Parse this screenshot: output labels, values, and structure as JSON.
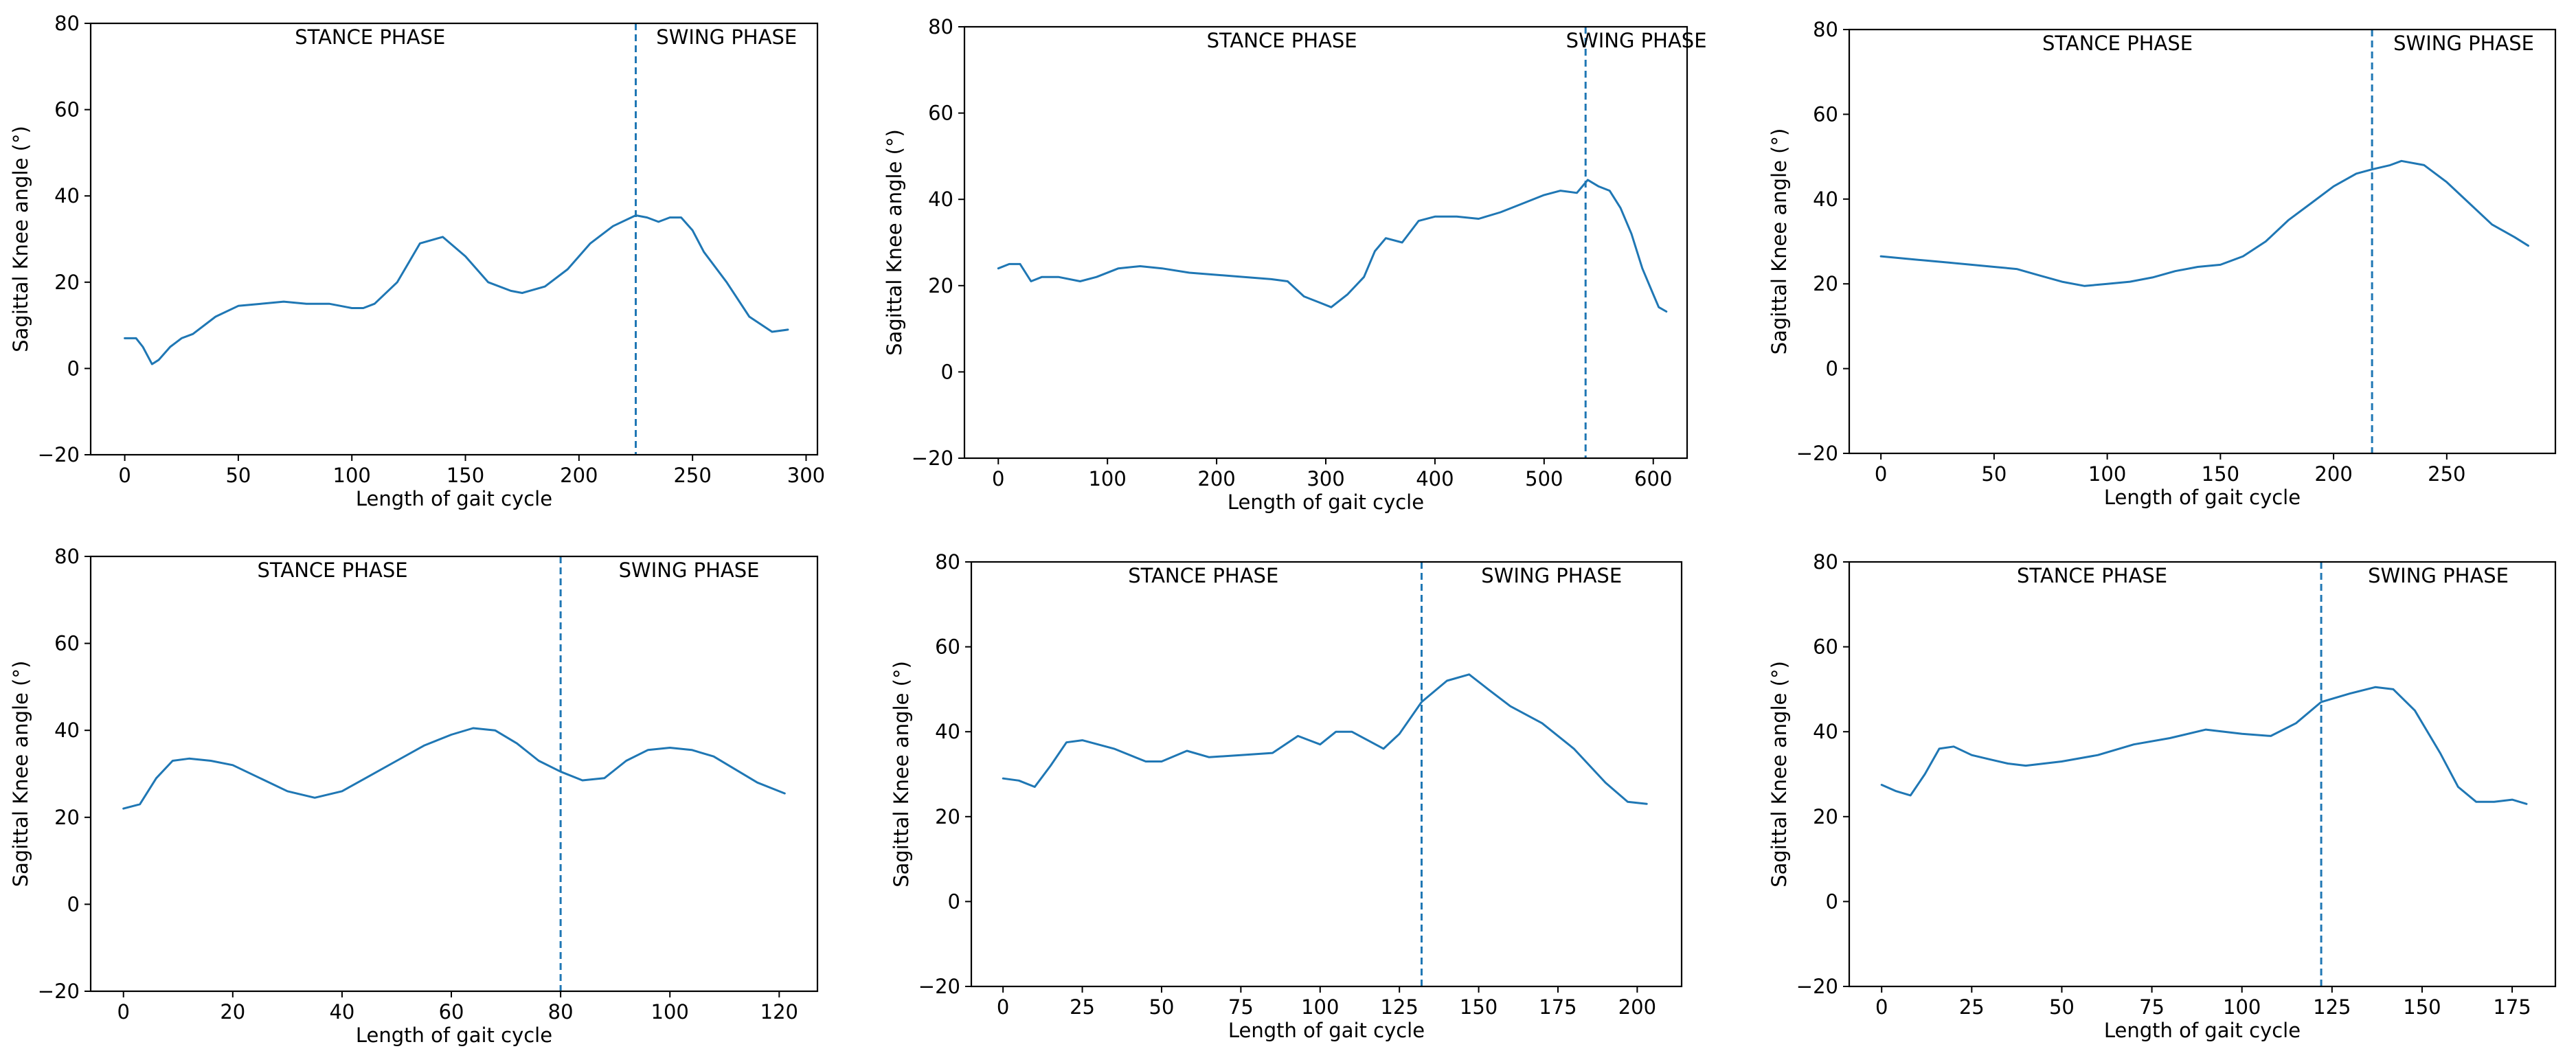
{
  "chart_data": [
    {
      "type": "line",
      "xlabel": "Length of gait cycle",
      "ylabel": "Sagittal Knee angle (°)",
      "xlim": [
        -15,
        305
      ],
      "ylim": [
        -20,
        80
      ],
      "xticks": [
        0,
        50,
        100,
        150,
        200,
        250,
        300
      ],
      "yticks": [
        -20,
        0,
        20,
        40,
        60,
        80
      ],
      "phase_divider_x": 225,
      "annotations": {
        "stance": "STANCE PHASE",
        "swing": "SWING PHASE"
      },
      "series": [
        {
          "name": "knee angle",
          "color": "#1f77b4",
          "x": [
            0,
            5,
            8,
            12,
            15,
            20,
            25,
            30,
            40,
            50,
            60,
            70,
            80,
            90,
            95,
            100,
            105,
            110,
            120,
            130,
            140,
            150,
            160,
            170,
            175,
            185,
            195,
            205,
            215,
            225,
            230,
            235,
            240,
            245,
            250,
            255,
            265,
            275,
            285,
            292
          ],
          "y": [
            7,
            7,
            5,
            1,
            2,
            5,
            7,
            8,
            12,
            14.5,
            15,
            15.5,
            15,
            15,
            14.5,
            14,
            14,
            15,
            20,
            29,
            30.5,
            26,
            20,
            18,
            17.5,
            19,
            23,
            29,
            33,
            35.5,
            35,
            34,
            35,
            35,
            32,
            27,
            20,
            12,
            8.5,
            9
          ]
        }
      ]
    },
    {
      "type": "line",
      "xlabel": "Length of gait cycle",
      "ylabel": "Sagittal Knee angle (°)",
      "xlim": [
        -31,
        631
      ],
      "ylim": [
        -20,
        80
      ],
      "xticks": [
        0,
        100,
        200,
        300,
        400,
        500,
        600
      ],
      "yticks": [
        -20,
        0,
        20,
        40,
        60,
        80
      ],
      "phase_divider_x": 538,
      "annotations": {
        "stance": "STANCE PHASE",
        "swing": "SWING PHASE"
      },
      "series": [
        {
          "name": "knee angle",
          "color": "#1f77b4",
          "x": [
            0,
            10,
            20,
            30,
            40,
            55,
            75,
            90,
            110,
            130,
            150,
            175,
            200,
            225,
            250,
            265,
            280,
            295,
            305,
            320,
            335,
            345,
            355,
            370,
            385,
            400,
            420,
            440,
            460,
            480,
            500,
            515,
            530,
            540,
            550,
            560,
            570,
            580,
            590,
            600,
            605,
            612
          ],
          "y": [
            24,
            25,
            25,
            21,
            22,
            22,
            21,
            22,
            24,
            24.5,
            24,
            23,
            22.5,
            22,
            21.5,
            21,
            17.5,
            16,
            15,
            18,
            22,
            28,
            31,
            30,
            35,
            36,
            36,
            35.5,
            37,
            39,
            41,
            42,
            41.5,
            44.5,
            43,
            42,
            38,
            32,
            24,
            18,
            15,
            14
          ]
        }
      ]
    },
    {
      "type": "line",
      "xlabel": "Length of gait cycle",
      "ylabel": "Sagittal Knee angle (°)",
      "xlim": [
        -14,
        298
      ],
      "ylim": [
        -20,
        80
      ],
      "xticks": [
        0,
        50,
        100,
        150,
        200,
        250
      ],
      "yticks": [
        -20,
        0,
        20,
        40,
        60,
        80
      ],
      "phase_divider_x": 217,
      "annotations": {
        "stance": "STANCE PHASE",
        "swing": "SWING PHASE"
      },
      "series": [
        {
          "name": "knee angle",
          "color": "#1f77b4",
          "x": [
            0,
            10,
            20,
            30,
            40,
            50,
            60,
            70,
            80,
            90,
            100,
            110,
            120,
            130,
            140,
            150,
            160,
            170,
            180,
            190,
            200,
            210,
            217,
            225,
            230,
            240,
            250,
            260,
            270,
            280,
            286
          ],
          "y": [
            26.5,
            26,
            25.5,
            25,
            24.5,
            24,
            23.5,
            22,
            20.5,
            19.5,
            20,
            20.5,
            21.5,
            23,
            24,
            24.5,
            26.5,
            30,
            35,
            39,
            43,
            46,
            47,
            48,
            49,
            48,
            44,
            39,
            34,
            31,
            29
          ]
        }
      ]
    },
    {
      "type": "line",
      "xlabel": "Length of gait cycle",
      "ylabel": "Sagittal Knee angle (°)",
      "xlim": [
        -6,
        127
      ],
      "ylim": [
        -20,
        80
      ],
      "xticks": [
        0,
        20,
        40,
        60,
        80,
        100,
        120
      ],
      "yticks": [
        -20,
        0,
        20,
        40,
        60,
        80
      ],
      "phase_divider_x": 80,
      "annotations": {
        "stance": "STANCE PHASE",
        "swing": "SWING PHASE"
      },
      "series": [
        {
          "name": "knee angle",
          "color": "#1f77b4",
          "x": [
            0,
            3,
            6,
            9,
            12,
            16,
            20,
            25,
            30,
            35,
            40,
            45,
            50,
            55,
            60,
            64,
            68,
            72,
            76,
            80,
            84,
            88,
            92,
            96,
            100,
            104,
            108,
            112,
            116,
            121
          ],
          "y": [
            22,
            23,
            29,
            33,
            33.5,
            33,
            32,
            29,
            26,
            24.5,
            26,
            29.5,
            33,
            36.5,
            39,
            40.5,
            40,
            37,
            33,
            30.5,
            28.5,
            29,
            33,
            35.5,
            36,
            35.5,
            34,
            31,
            28,
            25.5
          ]
        }
      ]
    },
    {
      "type": "line",
      "xlabel": "Length of gait cycle",
      "ylabel": "Sagittal Knee angle (°)",
      "xlim": [
        -10,
        214
      ],
      "ylim": [
        -20,
        80
      ],
      "xticks": [
        0,
        25,
        50,
        75,
        100,
        125,
        150,
        175,
        200
      ],
      "yticks": [
        -20,
        0,
        20,
        40,
        60,
        80
      ],
      "phase_divider_x": 132,
      "annotations": {
        "stance": "STANCE PHASE",
        "swing": "SWING PHASE"
      },
      "series": [
        {
          "name": "knee angle",
          "color": "#1f77b4",
          "x": [
            0,
            5,
            10,
            15,
            20,
            25,
            35,
            45,
            50,
            58,
            65,
            75,
            85,
            93,
            100,
            105,
            110,
            115,
            120,
            125,
            132,
            140,
            147,
            153,
            160,
            170,
            180,
            190,
            197,
            203
          ],
          "y": [
            29,
            28.5,
            27,
            32,
            37.5,
            38,
            36,
            33,
            33,
            35.5,
            34,
            34.5,
            35,
            39,
            37,
            40,
            40,
            38,
            36,
            39.5,
            47,
            52,
            53.5,
            50,
            46,
            42,
            36,
            28,
            23.5,
            23
          ]
        }
      ]
    },
    {
      "type": "line",
      "xlabel": "Length of gait cycle",
      "ylabel": "Sagittal Knee angle (°)",
      "xlim": [
        -9,
        187
      ],
      "ylim": [
        -20,
        80
      ],
      "xticks": [
        0,
        25,
        50,
        75,
        100,
        125,
        150,
        175
      ],
      "yticks": [
        -20,
        0,
        20,
        40,
        60,
        80
      ],
      "phase_divider_x": 122,
      "annotations": {
        "stance": "STANCE PHASE",
        "swing": "SWING PHASE"
      },
      "series": [
        {
          "name": "knee angle",
          "color": "#1f77b4",
          "x": [
            0,
            4,
            8,
            12,
            16,
            20,
            25,
            30,
            35,
            40,
            50,
            60,
            70,
            80,
            90,
            100,
            108,
            115,
            122,
            130,
            137,
            142,
            148,
            155,
            160,
            165,
            170,
            175,
            179
          ],
          "y": [
            27.5,
            26,
            25,
            30,
            36,
            36.5,
            34.5,
            33.5,
            32.5,
            32,
            33,
            34.5,
            37,
            38.5,
            40.5,
            39.5,
            39,
            42,
            47,
            49,
            50.5,
            50,
            45,
            35,
            27,
            23.5,
            23.5,
            24,
            23
          ]
        }
      ]
    }
  ]
}
